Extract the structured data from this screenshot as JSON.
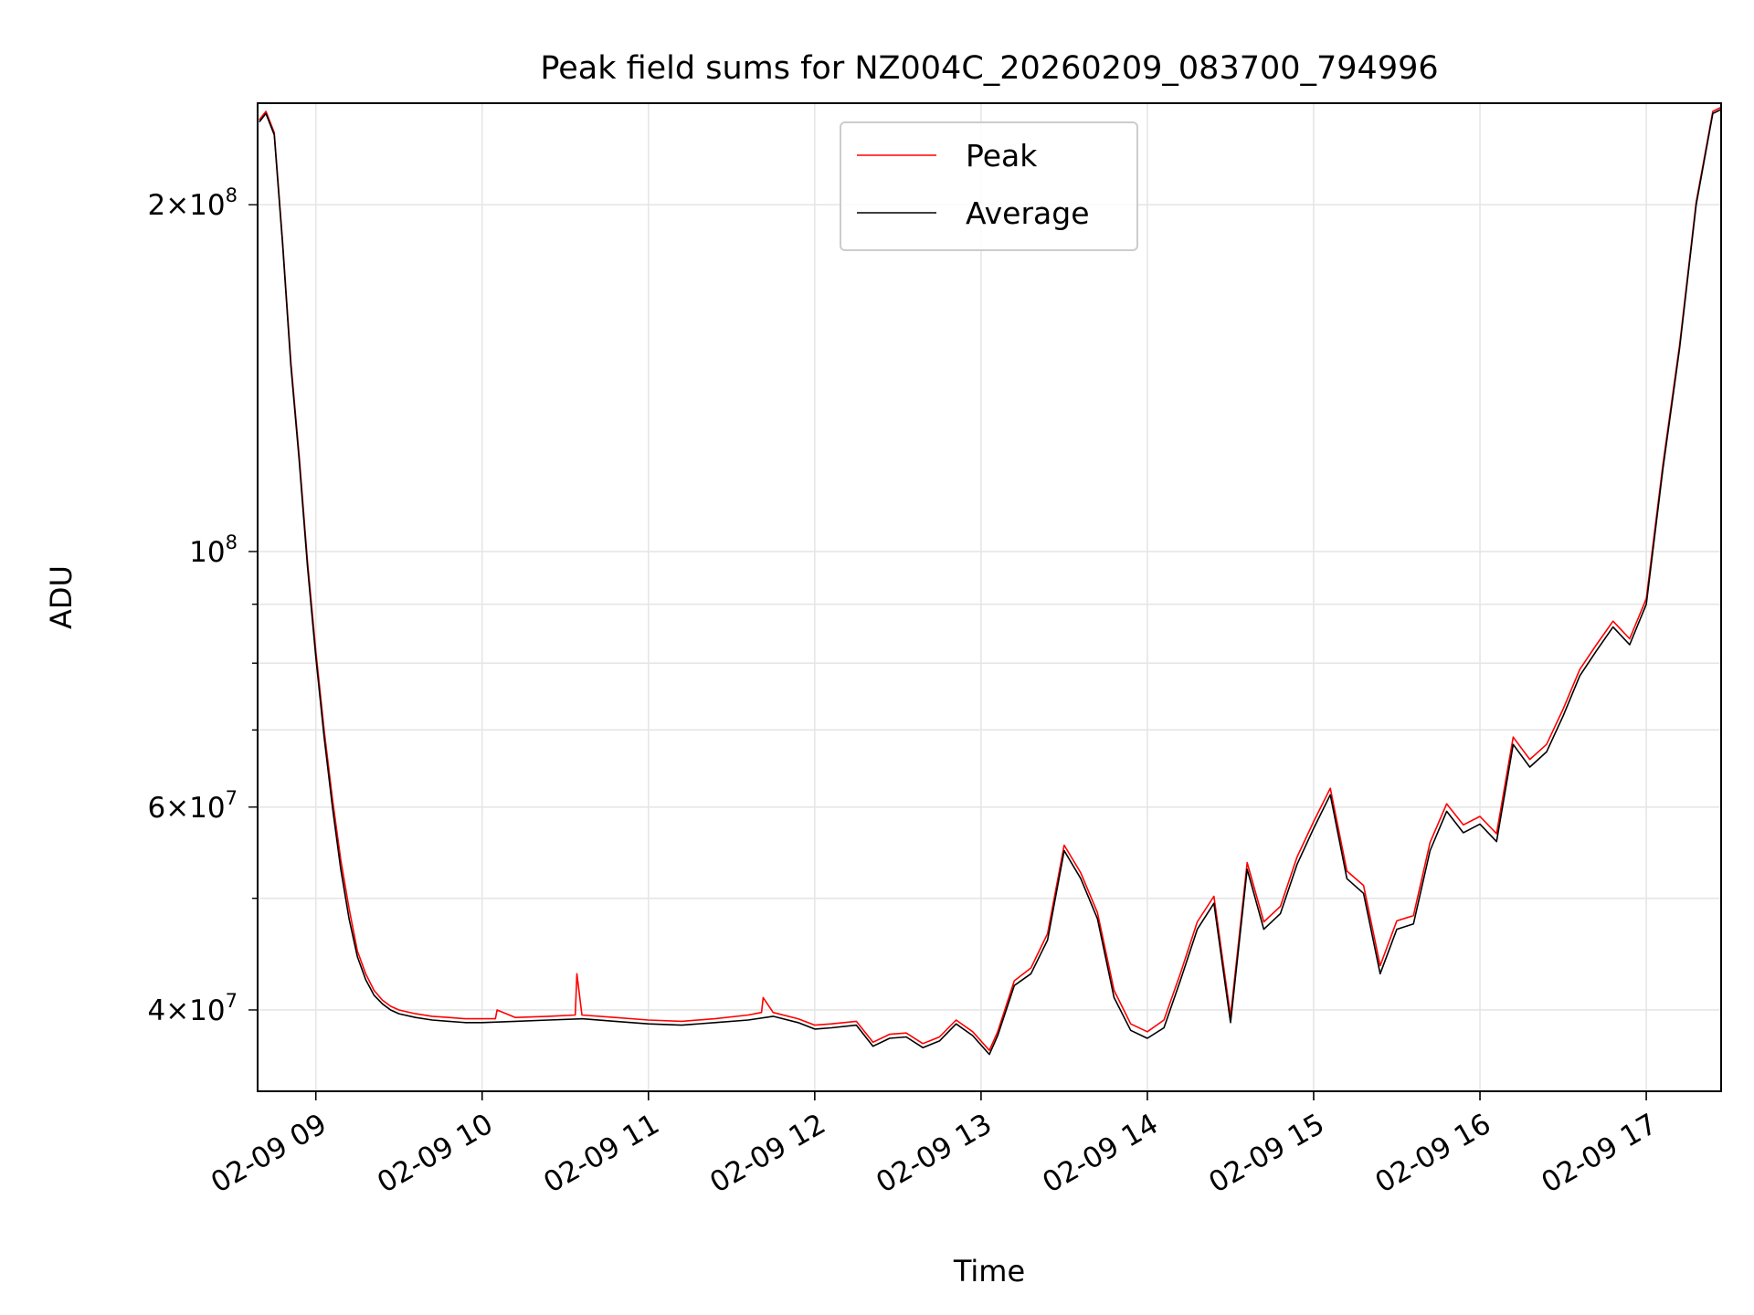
{
  "chart_data": {
    "type": "line",
    "title": "Peak field sums for NZ004C_20260209_083700_794996",
    "xlabel": "Time",
    "ylabel": "ADU",
    "yscale": "log",
    "grid": true,
    "legend_position": "top-center",
    "xlim": [
      8.65,
      17.45
    ],
    "ylim": [
      34000000,
      245000000
    ],
    "x_unit": "hours on 2026-02-09",
    "x_ticks": [
      {
        "value": 9,
        "label": "02-09 09"
      },
      {
        "value": 10,
        "label": "02-09 10"
      },
      {
        "value": 11,
        "label": "02-09 11"
      },
      {
        "value": 12,
        "label": "02-09 12"
      },
      {
        "value": 13,
        "label": "02-09 13"
      },
      {
        "value": 14,
        "label": "02-09 14"
      },
      {
        "value": 15,
        "label": "02-09 15"
      },
      {
        "value": 16,
        "label": "02-09 16"
      },
      {
        "value": 17,
        "label": "02-09 17"
      }
    ],
    "y_ticks": [
      {
        "value": 40000000,
        "mantissa": "4",
        "exponent": "7"
      },
      {
        "value": 60000000,
        "mantissa": "6",
        "exponent": "7"
      },
      {
        "value": 100000000,
        "mantissa": "",
        "exponent": "8"
      },
      {
        "value": 200000000,
        "mantissa": "2",
        "exponent": "8"
      }
    ],
    "series": [
      {
        "name": "Average",
        "color": "#000000",
        "x": [
          8.66,
          8.7,
          8.75,
          8.8,
          8.85,
          8.9,
          8.95,
          9.0,
          9.05,
          9.1,
          9.15,
          9.2,
          9.25,
          9.3,
          9.35,
          9.4,
          9.45,
          9.5,
          9.6,
          9.7,
          9.8,
          9.9,
          10.0,
          10.2,
          10.4,
          10.6,
          10.8,
          11.0,
          11.2,
          11.4,
          11.6,
          11.75,
          11.9,
          12.0,
          12.1,
          12.25,
          12.35,
          12.45,
          12.55,
          12.65,
          12.75,
          12.85,
          12.95,
          13.05,
          13.1,
          13.2,
          13.3,
          13.4,
          13.5,
          13.6,
          13.7,
          13.8,
          13.9,
          14.0,
          14.1,
          14.2,
          14.3,
          14.4,
          14.5,
          14.6,
          14.7,
          14.8,
          14.9,
          15.0,
          15.1,
          15.2,
          15.3,
          15.4,
          15.5,
          15.6,
          15.7,
          15.8,
          15.9,
          16.0,
          16.1,
          16.2,
          16.3,
          16.4,
          16.5,
          16.6,
          16.7,
          16.8,
          16.9,
          17.0,
          17.1,
          17.2,
          17.3,
          17.4,
          17.45
        ],
        "y": [
          236000000,
          240000000,
          230000000,
          185000000,
          145000000,
          120000000,
          97000000,
          81000000,
          69000000,
          60000000,
          53000000,
          48000000,
          44500000,
          42500000,
          41200000,
          40500000,
          40000000,
          39700000,
          39400000,
          39200000,
          39100000,
          39000000,
          39000000,
          39100000,
          39200000,
          39300000,
          39100000,
          38900000,
          38800000,
          39000000,
          39200000,
          39500000,
          39000000,
          38500000,
          38600000,
          38800000,
          37200000,
          37800000,
          37900000,
          37100000,
          37600000,
          38900000,
          38000000,
          36600000,
          38000000,
          42000000,
          43000000,
          46000000,
          55000000,
          52000000,
          48000000,
          41000000,
          38400000,
          37800000,
          38600000,
          42500000,
          47000000,
          49500000,
          39000000,
          53000000,
          47000000,
          48500000,
          53500000,
          57500000,
          61500000,
          52000000,
          50500000,
          43000000,
          47000000,
          47500000,
          55000000,
          59500000,
          57000000,
          58000000,
          56000000,
          68000000,
          65000000,
          67000000,
          72000000,
          78000000,
          82000000,
          86000000,
          83000000,
          90000000,
          118000000,
          150000000,
          200000000,
          240000000,
          242000000
        ]
      },
      {
        "name": "Peak",
        "color": "#ff0000",
        "x": [
          8.66,
          8.7,
          8.75,
          8.8,
          8.85,
          8.9,
          8.95,
          9.0,
          9.05,
          9.1,
          9.15,
          9.2,
          9.25,
          9.3,
          9.35,
          9.4,
          9.45,
          9.5,
          9.6,
          9.7,
          9.8,
          9.9,
          10.0,
          10.08,
          10.09,
          10.2,
          10.4,
          10.56,
          10.57,
          10.6,
          10.8,
          11.0,
          11.2,
          11.4,
          11.6,
          11.68,
          11.69,
          11.75,
          11.9,
          12.0,
          12.1,
          12.25,
          12.35,
          12.45,
          12.55,
          12.65,
          12.75,
          12.85,
          12.95,
          13.05,
          13.1,
          13.2,
          13.3,
          13.4,
          13.5,
          13.6,
          13.7,
          13.8,
          13.9,
          14.0,
          14.1,
          14.2,
          14.3,
          14.4,
          14.5,
          14.6,
          14.7,
          14.8,
          14.9,
          15.0,
          15.1,
          15.2,
          15.3,
          15.4,
          15.5,
          15.6,
          15.7,
          15.8,
          15.9,
          16.0,
          16.1,
          16.2,
          16.3,
          16.4,
          16.5,
          16.6,
          16.7,
          16.8,
          16.9,
          17.0,
          17.1,
          17.2,
          17.3,
          17.4,
          17.45
        ],
        "y": [
          237000000,
          241000000,
          231000000,
          186000000,
          146000000,
          121000000,
          98000000,
          82000000,
          70000000,
          61000000,
          54000000,
          49000000,
          45000000,
          43000000,
          41600000,
          40800000,
          40300000,
          40000000,
          39700000,
          39500000,
          39400000,
          39300000,
          39300000,
          39300000,
          40000000,
          39400000,
          39500000,
          39600000,
          43000000,
          39600000,
          39400000,
          39200000,
          39100000,
          39300000,
          39600000,
          39800000,
          41000000,
          39800000,
          39300000,
          38800000,
          38900000,
          39100000,
          37500000,
          38100000,
          38200000,
          37400000,
          37900000,
          39200000,
          38300000,
          36900000,
          38300000,
          42400000,
          43500000,
          46600000,
          55600000,
          52600000,
          48600000,
          41600000,
          38900000,
          38300000,
          39200000,
          43100000,
          47700000,
          50200000,
          39500000,
          53700000,
          47700000,
          49200000,
          54300000,
          58300000,
          62300000,
          52800000,
          51300000,
          43700000,
          47800000,
          48300000,
          55900000,
          60400000,
          57900000,
          58900000,
          56900000,
          69000000,
          66000000,
          68000000,
          73000000,
          79000000,
          83000000,
          87000000,
          84000000,
          91000000,
          119000000,
          151000000,
          201000000,
          241000000,
          243000000
        ]
      }
    ]
  }
}
